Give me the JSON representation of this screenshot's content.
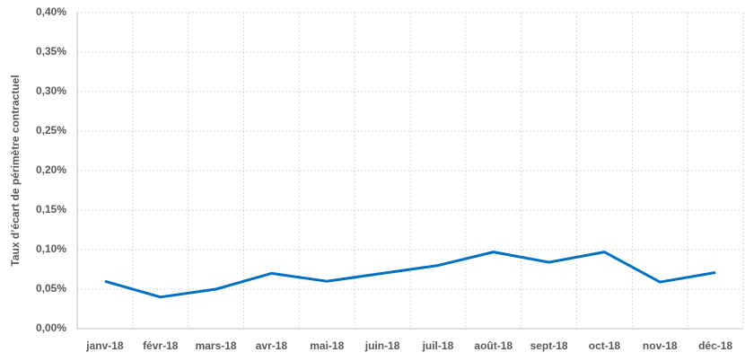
{
  "chart_data": {
    "type": "line",
    "y_label": "Taux d’écart de périmètre contractuel",
    "categories": [
      "janv-18",
      "févr-18",
      "mars-18",
      "avr-18",
      "mai-18",
      "juin-18",
      "juil-18",
      "août-18",
      "sept-18",
      "oct-18",
      "nov-18",
      "déc-18"
    ],
    "series": [
      {
        "color": "#0070c0",
        "values": [
          0.06,
          0.04,
          0.05,
          0.07,
          0.06,
          0.07,
          0.08,
          0.097,
          0.084,
          0.097,
          0.059,
          0.071
        ]
      }
    ],
    "ylim": [
      0,
      0.4
    ],
    "yticks": [
      {
        "value": 0,
        "label": "0,00%"
      },
      {
        "value": 0.05,
        "label": "0,05%"
      },
      {
        "value": 0.1,
        "label": "0,10%"
      },
      {
        "value": 0.15,
        "label": "0,15%"
      },
      {
        "value": 0.2,
        "label": "0,20%"
      },
      {
        "value": 0.25,
        "label": "0,25%"
      },
      {
        "value": 0.3,
        "label": "0,30%"
      },
      {
        "value": 0.35,
        "label": "0,35%"
      },
      {
        "value": 0.4,
        "label": "0,40%"
      }
    ],
    "grid": true
  }
}
